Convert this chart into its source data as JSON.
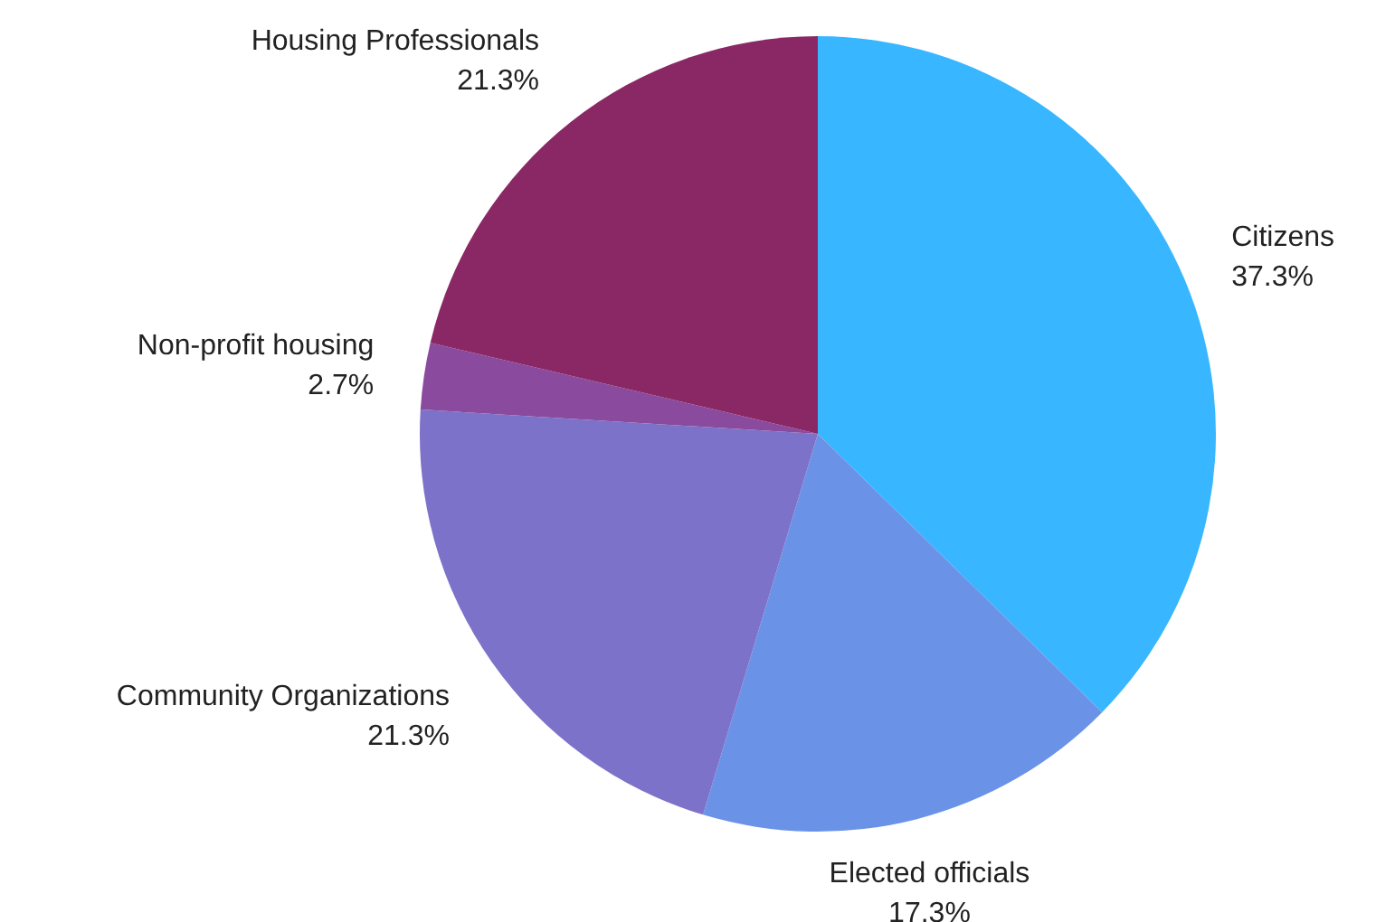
{
  "chart_data": {
    "type": "pie",
    "categories": [
      "Citizens",
      "Elected officials",
      "Community Organizations",
      "Non-profit housing",
      "Housing Professionals"
    ],
    "values": [
      37.3,
      17.3,
      21.3,
      2.7,
      21.3
    ],
    "value_labels": [
      "37.3%",
      "17.3%",
      "21.3%",
      "2.7%",
      "21.3%"
    ],
    "colors": [
      "#38b6ff",
      "#6a93e8",
      "#7d72c9",
      "#8a4a9e",
      "#8a2866"
    ]
  }
}
